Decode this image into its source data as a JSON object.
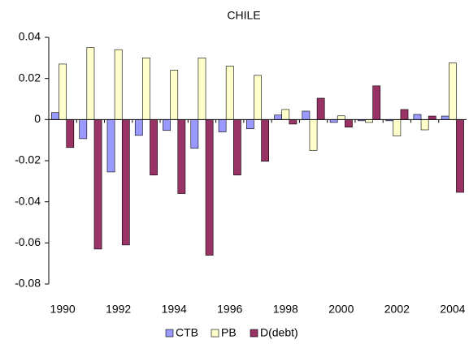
{
  "chart_data": {
    "type": "bar",
    "title": "CHILE",
    "categories": [
      "1990",
      null,
      "1992",
      null,
      "1994",
      null,
      "1996",
      null,
      "1998",
      null,
      "2000",
      null,
      "2002",
      null,
      "2004"
    ],
    "series": [
      {
        "name": "CTB",
        "color": "#9999ff",
        "values": [
          0.0034,
          -0.0093,
          -0.0255,
          -0.0077,
          -0.0053,
          -0.014,
          -0.006,
          -0.0045,
          0.0022,
          0.0041,
          -0.0014,
          -0.0006,
          -0.0006,
          0.0025,
          0.0017
        ]
      },
      {
        "name": "PB",
        "color": "#ffffcc",
        "values": [
          0.027,
          0.035,
          0.034,
          0.03,
          0.024,
          0.03,
          0.026,
          0.0215,
          0.0049,
          -0.015,
          0.0018,
          -0.0014,
          -0.008,
          -0.005,
          0.0275
        ]
      },
      {
        "name": "D(debt)",
        "color": "#993366",
        "values": [
          -0.0136,
          -0.063,
          -0.061,
          -0.027,
          -0.036,
          -0.066,
          -0.027,
          -0.0203,
          -0.0022,
          0.0104,
          -0.0037,
          0.0164,
          0.0049,
          0.0017,
          -0.0354
        ]
      }
    ],
    "ylim": [
      -0.08,
      0.04
    ],
    "yticks": [
      -0.08,
      -0.06,
      -0.04,
      -0.02,
      0,
      0.02,
      0.04
    ],
    "legend": "bottom"
  }
}
